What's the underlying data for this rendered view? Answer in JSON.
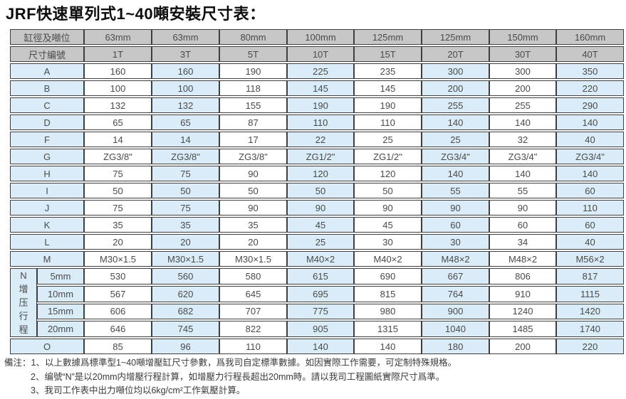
{
  "title": "JRF快速單列式1~40噸安裝尺寸表：",
  "table": {
    "header": {
      "bore_label": "缸徑及噸位",
      "bores": [
        "63mm",
        "63mm",
        "80mm",
        "100mm",
        "125mm",
        "125mm",
        "150mm",
        "160mm"
      ],
      "code_label": "尺寸编號",
      "codes": [
        "1T",
        "3T",
        "5T",
        "10T",
        "15T",
        "20T",
        "30T",
        "40T"
      ]
    },
    "rows": [
      {
        "label": "A",
        "values": [
          "160",
          "160",
          "190",
          "225",
          "235",
          "300",
          "300",
          "350"
        ]
      },
      {
        "label": "B",
        "values": [
          "100",
          "100",
          "118",
          "145",
          "145",
          "200",
          "200",
          "220"
        ]
      },
      {
        "label": "C",
        "values": [
          "132",
          "132",
          "155",
          "190",
          "190",
          "255",
          "255",
          "290"
        ]
      },
      {
        "label": "D",
        "values": [
          "65",
          "65",
          "87",
          "110",
          "110",
          "140",
          "140",
          "140"
        ]
      },
      {
        "label": "F",
        "values": [
          "14",
          "14",
          "17",
          "22",
          "25",
          "25",
          "32",
          "40"
        ]
      },
      {
        "label": "G",
        "values": [
          "ZG3/8\"",
          "ZG3/8\"",
          "ZG3/8\"",
          "ZG1/2\"",
          "ZG1/2\"",
          "ZG3/4\"",
          "ZG3/4\"",
          "ZG3/4\""
        ]
      },
      {
        "label": "H",
        "values": [
          "75",
          "75",
          "90",
          "120",
          "120",
          "140",
          "140",
          "140"
        ]
      },
      {
        "label": "I",
        "values": [
          "50",
          "50",
          "50",
          "50",
          "50",
          "55",
          "55",
          "60"
        ]
      },
      {
        "label": "J",
        "values": [
          "75",
          "75",
          "90",
          "90",
          "90",
          "90",
          "90",
          "110"
        ]
      },
      {
        "label": "K",
        "values": [
          "35",
          "35",
          "35",
          "45",
          "45",
          "60",
          "60",
          "60"
        ]
      },
      {
        "label": "L",
        "values": [
          "20",
          "20",
          "20",
          "25",
          "30",
          "30",
          "34",
          "40"
        ]
      },
      {
        "label": "M",
        "values": [
          "M30×1.5",
          "M30×1.5",
          "M30×1.5",
          "M40×2",
          "M40×2",
          "M48×2",
          "M48×2",
          "M56×2"
        ]
      }
    ],
    "n_block": {
      "group_label": "N增压行程",
      "subrows": [
        {
          "label": "5mm",
          "values": [
            "530",
            "560",
            "580",
            "615",
            "690",
            "667",
            "806",
            "817"
          ]
        },
        {
          "label": "10mm",
          "values": [
            "567",
            "620",
            "645",
            "695",
            "815",
            "764",
            "910",
            "1115"
          ]
        },
        {
          "label": "15mm",
          "values": [
            "606",
            "682",
            "707",
            "775",
            "980",
            "900",
            "1240",
            "1420"
          ]
        },
        {
          "label": "20mm",
          "values": [
            "646",
            "745",
            "822",
            "905",
            "1315",
            "1040",
            "1485",
            "1740"
          ]
        }
      ]
    },
    "o_row": {
      "label": "O",
      "values": [
        "85",
        "96",
        "110",
        "140",
        "140",
        "180",
        "200",
        "220"
      ]
    }
  },
  "notes": {
    "prefix": "備注：",
    "items": [
      "1、以上數據爲標準型1~40噸增壓缸尺寸參數，爲我司自定標準數據。如因實際工作需要，可定制特殊規格。",
      "2、编號“N”是以20mm内增壓行程計算，如增壓力行程長超出20mm時。請以我司工程圖紙實際尺寸爲準。",
      "3、我司工作表中出力噸位均以6kg/cm²工作氣壓計算。"
    ]
  },
  "colors": {
    "header_bg": "#c7c7c7",
    "cell_blue": "#d9ecf8",
    "cell_white": "#ffffff",
    "border": "#3f3f3f",
    "text": "#4a4a4a"
  }
}
